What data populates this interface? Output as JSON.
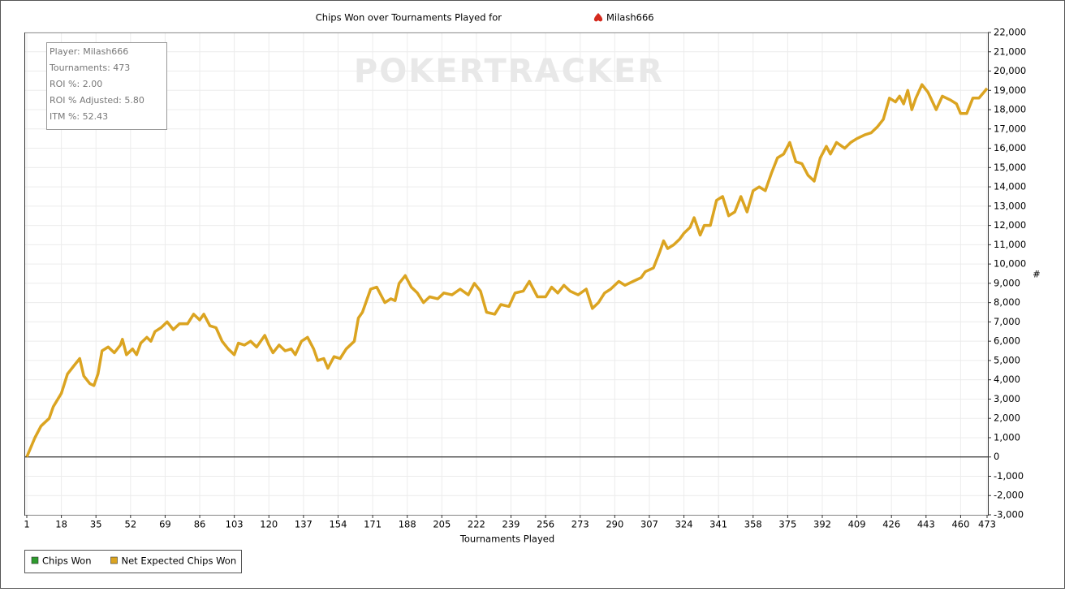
{
  "chart_data": {
    "type": "line",
    "title": "Chips Won over Tournaments Played for",
    "title_player": "Milash666",
    "watermark": "POKERTRACKER",
    "info_box": [
      "Player: Milash666",
      "Tournaments: 473",
      "ROI %: 2.00",
      "ROI % Adjusted: 5.80",
      "ITM %: 52.43"
    ],
    "x_label": "Tournaments Played",
    "y_label": "#",
    "legend": [
      {
        "name": "Chips Won",
        "color": "#2e9b2e"
      },
      {
        "name": "Net Expected Chips Won",
        "color": "#dba421"
      }
    ],
    "color": "#dba421",
    "grid": true,
    "xlim": [
      1,
      473
    ],
    "xticks": [
      1,
      18,
      35,
      52,
      69,
      86,
      103,
      120,
      137,
      154,
      171,
      188,
      205,
      222,
      239,
      256,
      273,
      290,
      307,
      324,
      341,
      358,
      375,
      392,
      409,
      426,
      443,
      460,
      473
    ],
    "ylim": [
      -3000,
      22000
    ],
    "yticks": [
      {
        "value": -3000,
        "label": "-3,000"
      },
      {
        "value": -2000,
        "label": "-2,000"
      },
      {
        "value": -1000,
        "label": "-1,000"
      },
      0,
      {
        "value": 1000,
        "label": "1,000"
      },
      {
        "value": 2000,
        "label": "2,000"
      },
      {
        "value": 3000,
        "label": "3,000"
      },
      {
        "value": 4000,
        "label": "4,000"
      },
      {
        "value": 5000,
        "label": "5,000"
      },
      {
        "value": 6000,
        "label": "6,000"
      },
      {
        "value": 7000,
        "label": "7,000"
      },
      {
        "value": 8000,
        "label": "8,000"
      },
      {
        "value": 9000,
        "label": "9,000"
      },
      {
        "value": 10000,
        "label": "10,000"
      },
      {
        "value": 11000,
        "label": "11,000"
      },
      {
        "value": 12000,
        "label": "12,000"
      },
      {
        "value": 13000,
        "label": "13,000"
      },
      {
        "value": 14000,
        "label": "14,000"
      },
      {
        "value": 15000,
        "label": "15,000"
      },
      {
        "value": 16000,
        "label": "16,000"
      },
      {
        "value": 17000,
        "label": "17,000"
      },
      {
        "value": 18000,
        "label": "18,000"
      },
      {
        "value": 19000,
        "label": "19,000"
      },
      {
        "value": 20000,
        "label": "20,000"
      },
      {
        "value": 21000,
        "label": "21,000"
      },
      {
        "value": 22000,
        "label": "22,000"
      }
    ],
    "x": [
      1,
      5,
      8,
      12,
      14,
      18,
      21,
      24,
      27,
      29,
      32,
      34,
      36,
      38,
      41,
      44,
      47,
      48,
      50,
      53,
      55,
      57,
      60,
      62,
      64,
      67,
      70,
      73,
      76,
      80,
      83,
      86,
      88,
      91,
      94,
      97,
      100,
      103,
      105,
      108,
      111,
      114,
      118,
      120,
      122,
      125,
      128,
      131,
      133,
      136,
      139,
      142,
      144,
      147,
      149,
      152,
      155,
      158,
      162,
      164,
      166,
      170,
      173,
      175,
      177,
      180,
      182,
      184,
      187,
      190,
      193,
      196,
      199,
      203,
      206,
      210,
      214,
      218,
      221,
      224,
      227,
      231,
      234,
      238,
      241,
      245,
      248,
      252,
      256,
      259,
      262,
      265,
      268,
      272,
      276,
      279,
      282,
      285,
      288,
      292,
      295,
      299,
      303,
      305,
      309,
      312,
      314,
      316,
      319,
      322,
      324,
      327,
      329,
      332,
      334,
      337,
      340,
      343,
      346,
      349,
      352,
      355,
      358,
      361,
      364,
      367,
      370,
      373,
      376,
      379,
      382,
      385,
      388,
      391,
      394,
      396,
      399,
      403,
      406,
      409,
      413,
      416,
      419,
      422,
      425,
      428,
      430,
      432,
      434,
      436,
      438,
      441,
      444,
      448,
      451,
      455,
      458,
      460,
      463,
      466,
      469,
      473
    ],
    "values": [
      0,
      1000,
      1600,
      2000,
      2600,
      3300,
      4300,
      4700,
      5100,
      4200,
      3800,
      3700,
      4300,
      5500,
      5700,
      5400,
      5800,
      6100,
      5300,
      5600,
      5300,
      5900,
      6200,
      6000,
      6500,
      6700,
      7000,
      6600,
      6900,
      6900,
      7400,
      7100,
      7400,
      6800,
      6700,
      6000,
      5600,
      5300,
      5900,
      5800,
      6000,
      5700,
      6300,
      5800,
      5400,
      5800,
      5500,
      5600,
      5300,
      6000,
      6200,
      5600,
      5000,
      5100,
      4600,
      5200,
      5100,
      5600,
      6000,
      7200,
      7500,
      8700,
      8800,
      8400,
      8000,
      8200,
      8100,
      9000,
      9400,
      8800,
      8500,
      8000,
      8300,
      8200,
      8500,
      8400,
      8700,
      8400,
      9000,
      8600,
      7500,
      7400,
      7900,
      7800,
      8500,
      8600,
      9100,
      8300,
      8300,
      8800,
      8500,
      8900,
      8600,
      8400,
      8700,
      7700,
      8000,
      8500,
      8700,
      9100,
      8900,
      9100,
      9300,
      9600,
      9800,
      10600,
      11200,
      10800,
      11000,
      11300,
      11600,
      11900,
      12400,
      11500,
      12000,
      12000,
      13300,
      13500,
      12500,
      12700,
      13500,
      12700,
      13800,
      14000,
      13800,
      14700,
      15500,
      15700,
      16300,
      15300,
      15200,
      14600,
      14300,
      15500,
      16100,
      15700,
      16300,
      16000,
      16300,
      16500,
      16700,
      16800,
      17100,
      17500,
      18600,
      18400,
      18700,
      18300,
      19000,
      18000,
      18600,
      19300,
      18900,
      18000,
      18700,
      18500,
      18300,
      17800,
      17800,
      18600,
      18600,
      19100
    ]
  }
}
